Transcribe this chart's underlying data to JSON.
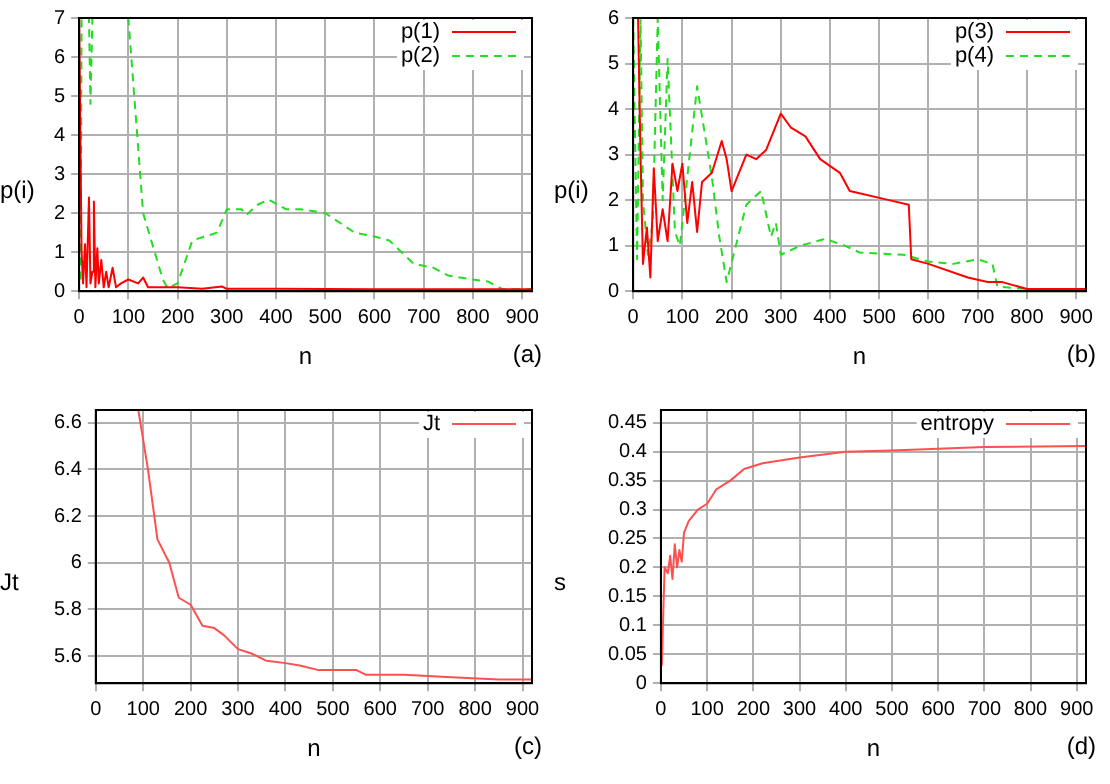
{
  "chart_data": [
    {
      "type": "line",
      "xlabel": "n",
      "ylabel": "p(i)",
      "annotations": [
        "(a)"
      ],
      "xlim": [
        0,
        920
      ],
      "xticks": [
        0,
        100,
        200,
        300,
        400,
        500,
        600,
        700,
        800,
        900
      ],
      "ylim": [
        0,
        7
      ],
      "yticks": [
        0,
        1,
        2,
        3,
        4,
        5,
        6,
        7
      ],
      "grid": true,
      "legend": "top right",
      "marker": "none",
      "series": [
        {
          "name": "p(1)",
          "color": "#ff0000",
          "line_style": "solid",
          "x": [
            0,
            5,
            8,
            12,
            15,
            20,
            23,
            27,
            30,
            33,
            37,
            40,
            45,
            50,
            55,
            60,
            68,
            75,
            85,
            100,
            120,
            130,
            140,
            200,
            250,
            290,
            300,
            400,
            600,
            920
          ],
          "values": [
            7,
            1,
            0.2,
            1.2,
            0.1,
            2.4,
            0.2,
            0.5,
            2.3,
            0.1,
            1.1,
            0.2,
            0.8,
            0.1,
            0.5,
            0.1,
            0.6,
            0.1,
            0.2,
            0.3,
            0.2,
            0.35,
            0.1,
            0.1,
            0.06,
            0.12,
            0.06,
            0.06,
            0.05,
            0.05
          ]
        },
        {
          "name": "p(2)",
          "color": "#22dd22",
          "line_style": "dashed",
          "x": [
            3,
            5,
            12,
            20,
            23,
            27,
            100,
            130,
            170,
            180,
            200,
            230,
            280,
            300,
            330,
            340,
            360,
            385,
            420,
            450,
            500,
            560,
            600,
            630,
            680,
            720,
            750,
            800,
            830,
            860,
            920
          ],
          "values": [
            0.3,
            7,
            7,
            7,
            4.8,
            7,
            7,
            2,
            0.3,
            0.08,
            0.2,
            1.3,
            1.5,
            2.1,
            2.1,
            1.95,
            2.2,
            2.35,
            2.1,
            2.1,
            2,
            1.5,
            1.4,
            1.3,
            0.7,
            0.6,
            0.4,
            0.3,
            0.25,
            0.05,
            0.05
          ]
        }
      ]
    },
    {
      "type": "line",
      "xlabel": "n",
      "ylabel": "p(i)",
      "annotations": [
        "(b)"
      ],
      "xlim": [
        0,
        920
      ],
      "xticks": [
        0,
        100,
        200,
        300,
        400,
        500,
        600,
        700,
        800,
        900
      ],
      "ylim": [
        0,
        6
      ],
      "yticks": [
        0,
        1,
        2,
        3,
        4,
        5,
        6
      ],
      "grid": true,
      "legend": "top right",
      "marker": "none",
      "series": [
        {
          "name": "p(3)",
          "color": "#ff0000",
          "line_style": "solid",
          "x": [
            0,
            10,
            15,
            20,
            28,
            35,
            42,
            50,
            60,
            70,
            80,
            90,
            100,
            110,
            120,
            130,
            140,
            160,
            180,
            190,
            200,
            230,
            250,
            270,
            300,
            320,
            350,
            380,
            420,
            440,
            520,
            560,
            565,
            600,
            680,
            720,
            750,
            800,
            920
          ],
          "values": [
            6,
            6,
            3,
            0.6,
            1.4,
            0.3,
            2.7,
            1.1,
            1.8,
            1.1,
            2.8,
            2.2,
            2.8,
            1.5,
            2.4,
            1.3,
            2.4,
            2.6,
            3.3,
            2.9,
            2.2,
            3,
            2.9,
            3.1,
            3.9,
            3.6,
            3.4,
            2.9,
            2.6,
            2.2,
            2,
            1.9,
            0.7,
            0.6,
            0.3,
            0.2,
            0.2,
            0.05,
            0.05
          ]
        },
        {
          "name": "p(4)",
          "color": "#22dd22",
          "line_style": "dashed",
          "x": [
            0,
            8,
            15,
            20,
            30,
            40,
            50,
            60,
            70,
            85,
            95,
            130,
            160,
            175,
            190,
            230,
            260,
            280,
            290,
            300,
            340,
            390,
            430,
            460,
            550,
            600,
            650,
            700,
            730,
            740,
            800,
            920
          ],
          "values": [
            6,
            0.7,
            6,
            2,
            0.8,
            1.5,
            6,
            2,
            5.1,
            1.3,
            1,
            4.5,
            2.5,
            1.2,
            0.2,
            1.9,
            2.2,
            1.2,
            1.5,
            0.8,
            1,
            1.15,
            1,
            0.85,
            0.8,
            0.65,
            0.6,
            0.7,
            0.6,
            0.1,
            0.05,
            0.05
          ]
        }
      ]
    },
    {
      "type": "line",
      "xlabel": "n",
      "ylabel": "Jt",
      "annotations": [
        "(c)"
      ],
      "xlim": [
        0,
        920
      ],
      "xticks": [
        0,
        100,
        200,
        300,
        400,
        500,
        600,
        700,
        800,
        900
      ],
      "ylim": [
        5.484,
        6.654
      ],
      "yticks": [
        5.6,
        5.8,
        6,
        6.2,
        6.4,
        6.6
      ],
      "grid": true,
      "legend": "top right",
      "marker": "none",
      "series": [
        {
          "name": "Jt",
          "color": "#ff5050",
          "line_style": "solid",
          "x": [
            90,
            110,
            130,
            155,
            175,
            200,
            225,
            250,
            270,
            300,
            330,
            360,
            400,
            430,
            470,
            550,
            570,
            650,
            750,
            850,
            920
          ],
          "values": [
            6.65,
            6.4,
            6.1,
            6,
            5.85,
            5.82,
            5.73,
            5.72,
            5.69,
            5.63,
            5.61,
            5.58,
            5.57,
            5.56,
            5.54,
            5.54,
            5.52,
            5.52,
            5.51,
            5.5,
            5.5
          ]
        }
      ]
    },
    {
      "type": "line",
      "xlabel": "n",
      "ylabel": "s",
      "annotations": [
        "(d)"
      ],
      "xlim": [
        0,
        920
      ],
      "xticks": [
        0,
        100,
        200,
        300,
        400,
        500,
        600,
        700,
        800,
        900
      ],
      "ylim": [
        0,
        0.472
      ],
      "yticks": [
        0,
        0.05,
        0.1,
        0.15,
        0.2,
        0.25,
        0.3,
        0.35,
        0.4,
        0.45
      ],
      "grid": true,
      "legend": "top right",
      "marker": "none",
      "series": [
        {
          "name": "entropy",
          "color": "#ff5050",
          "line_style": "solid",
          "x": [
            2,
            5,
            8,
            15,
            20,
            25,
            30,
            35,
            40,
            45,
            50,
            60,
            70,
            80,
            100,
            120,
            150,
            180,
            220,
            300,
            400,
            500,
            600,
            700,
            920
          ],
          "values": [
            0.03,
            0.12,
            0.2,
            0.19,
            0.22,
            0.18,
            0.24,
            0.2,
            0.23,
            0.21,
            0.26,
            0.28,
            0.29,
            0.3,
            0.31,
            0.335,
            0.35,
            0.37,
            0.38,
            0.39,
            0.4,
            0.402,
            0.405,
            0.408,
            0.41
          ]
        }
      ]
    }
  ]
}
